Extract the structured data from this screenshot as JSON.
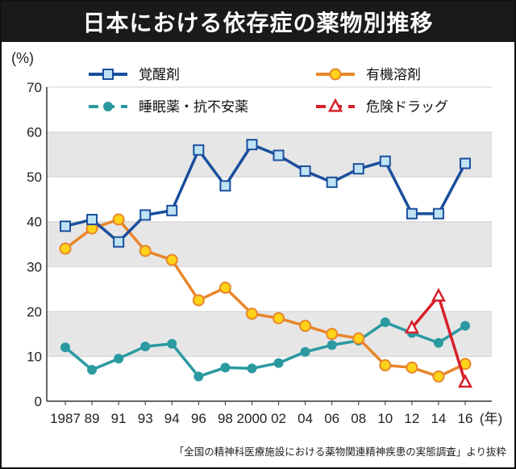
{
  "title": "日本における依存症の薬物別推移",
  "source": "「全国の精神科医療施設における薬物関連精神疾患の実態調査」より抜粋",
  "chart_data": {
    "type": "line",
    "ylabel": "(%)",
    "xunit": "(年)",
    "ylim": [
      0,
      70
    ],
    "yticks": [
      "0",
      "10",
      "20",
      "30",
      "40",
      "50",
      "60",
      "70"
    ],
    "band_shading": "alternating gray bands 20-30 / 40-50 / 60-70? shaded at 10-20, 30-40, 50-60",
    "categories": [
      "1987",
      "89",
      "91",
      "93",
      "94",
      "96",
      "98",
      "2000",
      "02",
      "04",
      "06",
      "08",
      "10",
      "12",
      "14",
      "16"
    ],
    "series": [
      {
        "name": "覚醒剤",
        "color": "#1a4f9c",
        "marker": "square",
        "values": [
          39,
          40.5,
          35.5,
          41.5,
          42.5,
          56,
          48,
          57.2,
          54.8,
          51.3,
          48.8,
          51.8,
          53.5,
          41.8,
          41.8,
          53
        ]
      },
      {
        "name": "有機溶剤",
        "color": "#e8862a",
        "marker": "circle",
        "values": [
          34,
          38.5,
          40.5,
          33.5,
          31.5,
          22.5,
          25.3,
          19.5,
          18.5,
          16.8,
          15,
          14,
          8,
          7.5,
          5.5,
          8.3
        ]
      },
      {
        "name": "睡眠薬・抗不安薬",
        "color": "#2a9aa0",
        "marker": "dot",
        "dashed": true,
        "values": [
          12,
          7,
          9.5,
          12.2,
          12.8,
          5.5,
          7.5,
          7.3,
          8.5,
          11,
          12.5,
          13.5,
          17.6,
          15.2,
          13,
          16.8
        ]
      },
      {
        "name": "危険ドラッグ",
        "color": "#d8202a",
        "marker": "triangle",
        "dashed": true,
        "values": [
          null,
          null,
          null,
          null,
          null,
          null,
          null,
          null,
          null,
          null,
          null,
          null,
          null,
          16.3,
          23.4,
          4.2
        ]
      }
    ]
  }
}
